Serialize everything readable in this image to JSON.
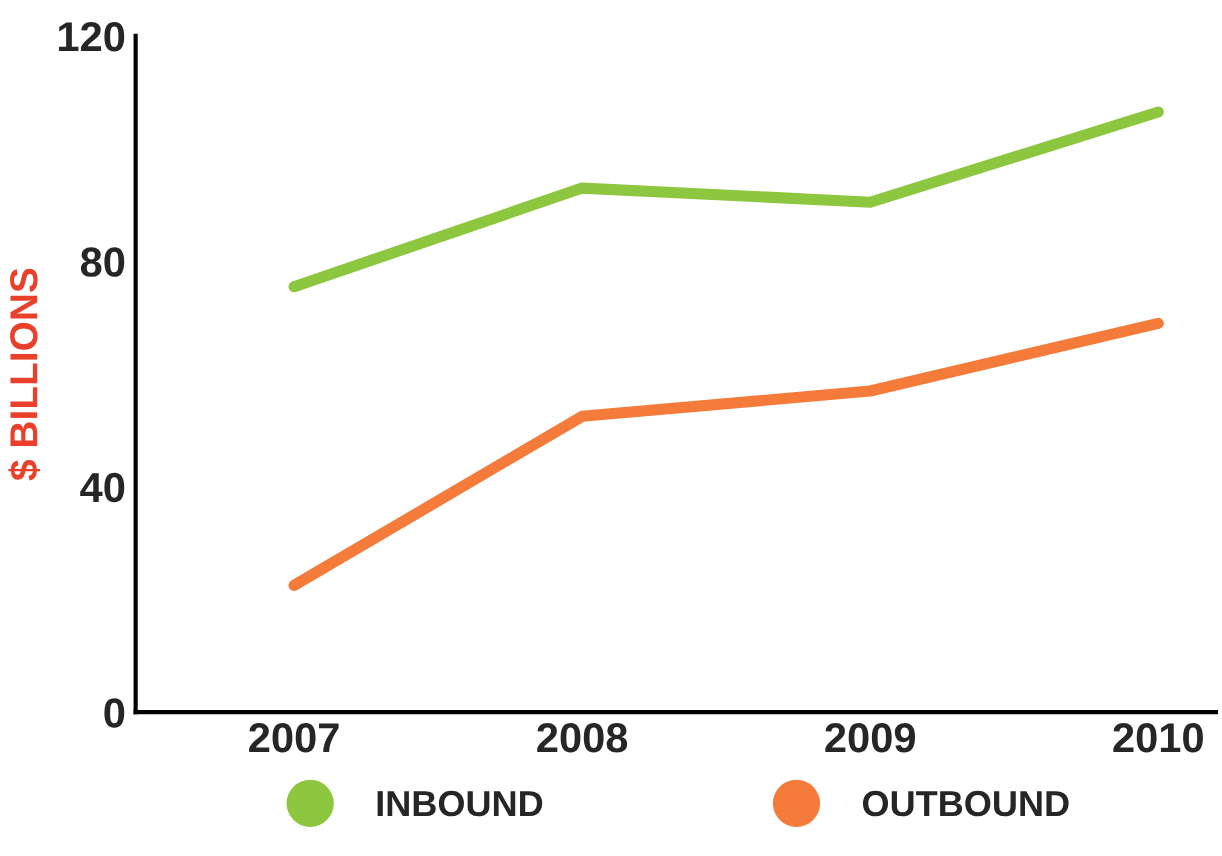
{
  "chart_data": {
    "type": "line",
    "ylabel": "$ BILLIONS",
    "categories": [
      "2007",
      "2008",
      "2009",
      "2010"
    ],
    "series": [
      {
        "name": "INBOUND",
        "color": "#8dc63f",
        "values": [
          75.5,
          93,
          90.5,
          106.5
        ]
      },
      {
        "name": "OUTBOUND",
        "color": "#f47b3a",
        "values": [
          22.5,
          52.5,
          57,
          69
        ]
      }
    ],
    "ylim": [
      0,
      120
    ],
    "yticks": [
      0,
      40,
      80,
      120
    ],
    "grid": false,
    "legend": "bottom",
    "marker": "none",
    "line_style": "solid"
  }
}
